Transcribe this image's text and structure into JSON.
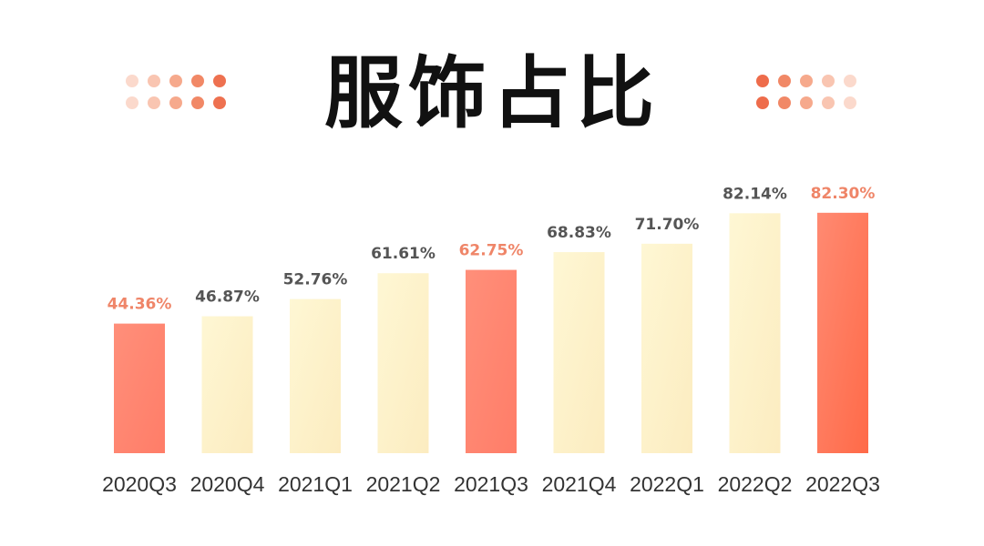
{
  "title": "服饰占比",
  "colors": {
    "highlight_bar": "#ff7a62",
    "highlight_bar_dark": "#ff6a48",
    "normal_bar": "#fdf2c6",
    "highlight_label": "#ef8568",
    "normal_label": "#555555",
    "category_label": "#333333"
  },
  "chart_data": {
    "type": "bar",
    "title": "服饰占比",
    "categories": [
      "2020Q3",
      "2020Q4",
      "2021Q1",
      "2021Q2",
      "2021Q3",
      "2021Q4",
      "2022Q1",
      "2022Q2",
      "2022Q3"
    ],
    "values": [
      44.36,
      46.87,
      52.76,
      61.61,
      62.75,
      68.83,
      71.7,
      82.14,
      82.3
    ],
    "data_labels": [
      "44.36%",
      "46.87%",
      "52.76%",
      "61.61%",
      "62.75%",
      "68.83%",
      "71.70%",
      "82.14%",
      "82.30%"
    ],
    "highlighted": [
      true,
      false,
      false,
      false,
      true,
      false,
      false,
      false,
      true
    ],
    "ylim": [
      0,
      100
    ],
    "grid": false,
    "legend": "none",
    "unit": "%"
  }
}
